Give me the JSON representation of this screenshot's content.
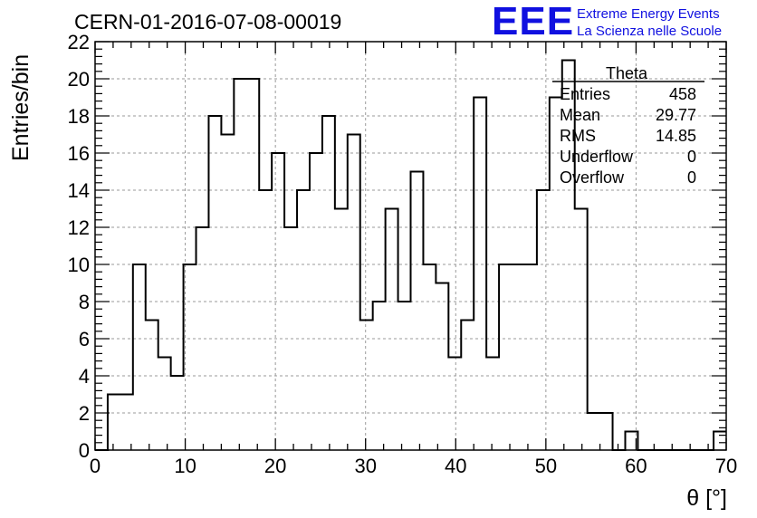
{
  "header": {
    "title": "CERN-01-2016-07-08-00019",
    "logo_text": "EEE",
    "logo_line1": "Extreme Energy Events",
    "logo_line2": "La Scienza nelle Scuole",
    "logo_color": "#1010e0"
  },
  "stats": {
    "name": "Theta",
    "rows": [
      {
        "label": "Entries",
        "value": "458"
      },
      {
        "label": "Mean",
        "value": "29.77"
      },
      {
        "label": "RMS",
        "value": "14.85"
      },
      {
        "label": "Underflow",
        "value": "0"
      },
      {
        "label": "Overflow",
        "value": "0"
      }
    ]
  },
  "chart_data": {
    "type": "bar",
    "title": "CERN-01-2016-07-08-00019",
    "xlabel": "θ [°]",
    "ylabel": "Entries/bin",
    "xlim": [
      0,
      70
    ],
    "ylim": [
      0,
      22
    ],
    "grid": true,
    "bin_edges_start": 0,
    "bin_width": 1.4,
    "values": [
      0,
      3,
      3,
      10,
      7,
      5,
      4,
      10,
      12,
      18,
      17,
      20,
      20,
      14,
      16,
      12,
      14,
      16,
      18,
      13,
      17,
      7,
      8,
      13,
      8,
      15,
      10,
      9,
      5,
      7,
      19,
      5,
      10,
      10,
      10,
      14,
      19,
      21,
      13,
      2,
      2,
      0,
      1,
      0,
      0,
      0,
      0,
      0,
      0,
      1
    ],
    "xticks": [
      "0",
      "10",
      "20",
      "30",
      "40",
      "50",
      "60",
      "70"
    ],
    "yticks": [
      "0",
      "2",
      "4",
      "6",
      "8",
      "10",
      "12",
      "14",
      "16",
      "18",
      "20",
      "22"
    ]
  }
}
